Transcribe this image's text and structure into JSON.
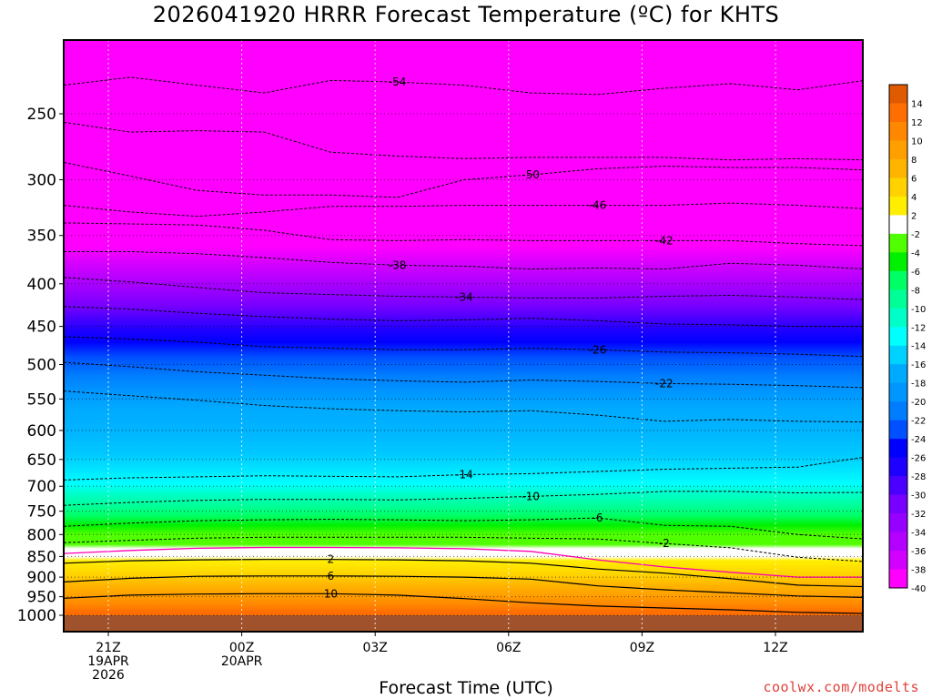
{
  "title": "2026041920 HRRR Forecast Temperature (ºC) for KHTS",
  "credit": "coolwx.com/modelts",
  "chart_data": {
    "type": "heatmap",
    "xlabel": "Forecast Time (UTC)",
    "ylabel": "",
    "x_range_hours": [
      -1,
      17
    ],
    "y_range_hpa": [
      200,
      1030
    ],
    "y_scale": "log-pressure (inverted)",
    "y_ticks": [
      250,
      300,
      350,
      400,
      450,
      500,
      550,
      600,
      650,
      700,
      750,
      800,
      850,
      900,
      950,
      1000
    ],
    "x_ticks": [
      {
        "h": 0,
        "lines": [
          "21Z",
          "19APR",
          "2026"
        ]
      },
      {
        "h": 3,
        "lines": [
          "00Z",
          "20APR"
        ]
      },
      {
        "h": 6,
        "lines": [
          "03Z"
        ]
      },
      {
        "h": 9,
        "lines": [
          "06Z"
        ]
      },
      {
        "h": 12,
        "lines": [
          "09Z"
        ]
      },
      {
        "h": 15,
        "lines": [
          "12Z"
        ]
      }
    ],
    "grid": true,
    "colorbar": {
      "placement": "right",
      "labels": [
        "14",
        "12",
        "10",
        "8",
        "6",
        "4",
        "2",
        "-2",
        "-4",
        "-6",
        "-8",
        "-10",
        "-12",
        "-14",
        "-16",
        "-18",
        "-20",
        "-22",
        "-24",
        "-26",
        "-28",
        "-30",
        "-32",
        "-34",
        "-36",
        "-38",
        "-40"
      ],
      "colors": [
        "#e05a00",
        "#ff6e00",
        "#ff8800",
        "#ffa000",
        "#ffb400",
        "#ffd200",
        "#ffee00",
        "#ffffff",
        "#50ff00",
        "#00f000",
        "#00ff64",
        "#00ff96",
        "#00ffc8",
        "#00ffff",
        "#00d2ff",
        "#00aaff",
        "#0096ff",
        "#007dff",
        "#0050ff",
        "#0000ff",
        "#1e00ff",
        "#4b00ff",
        "#7800ff",
        "#9600ff",
        "#b400ff",
        "#d200ff",
        "#ff00ff"
      ]
    },
    "surface_fill": "#a0522d",
    "series": [
      {
        "label": "-54",
        "y": [
          231,
          226,
          231,
          236,
          228,
          229,
          231,
          236,
          237,
          233,
          230,
          234,
          228
        ]
      },
      {
        "label": "",
        "y": [
          256,
          263,
          262,
          263,
          278,
          281,
          283,
          282,
          282,
          282,
          284,
          283,
          284
        ]
      },
      {
        "label": "-50",
        "y": [
          286,
          297,
          309,
          313,
          313,
          315,
          300,
          296,
          291,
          289,
          290,
          290,
          292
        ]
      },
      {
        "label": "-46",
        "y": [
          322,
          328,
          332,
          328,
          323,
          323,
          322,
          322,
          322,
          322,
          320,
          322,
          325
        ]
      },
      {
        "label": "-42",
        "y": [
          338,
          339,
          340,
          345,
          354,
          355,
          354,
          355,
          355,
          355,
          355,
          358,
          360
        ]
      },
      {
        "label": "-38",
        "y": [
          366,
          366,
          368,
          372,
          377,
          380,
          381,
          384,
          383,
          384,
          378,
          380,
          384
        ]
      },
      {
        "label": "-34",
        "y": [
          393,
          398,
          404,
          410,
          412,
          414,
          415,
          416,
          416,
          414,
          413,
          415,
          418
        ]
      },
      {
        "label": "",
        "y": [
          426,
          429,
          434,
          438,
          441,
          443,
          442,
          440,
          443,
          447,
          448,
          450,
          450
        ]
      },
      {
        "label": "-26",
        "y": [
          463,
          466,
          470,
          476,
          478,
          480,
          480,
          478,
          480,
          483,
          484,
          486,
          489
        ]
      },
      {
        "label": "-22",
        "y": [
          497,
          503,
          510,
          515,
          520,
          523,
          525,
          522,
          524,
          527,
          528,
          530,
          533
        ]
      },
      {
        "label": "",
        "y": [
          538,
          545,
          552,
          560,
          565,
          568,
          570,
          568,
          575,
          585,
          582,
          585,
          586
        ]
      },
      {
        "label": "-14",
        "y": [
          688,
          684,
          682,
          680,
          681,
          682,
          678,
          676,
          672,
          668,
          666,
          664,
          646
        ]
      },
      {
        "label": "-10",
        "y": [
          738,
          732,
          728,
          726,
          726,
          727,
          724,
          720,
          716,
          710,
          710,
          713,
          712
        ]
      },
      {
        "label": "-6",
        "y": [
          782,
          775,
          770,
          768,
          767,
          768,
          770,
          768,
          764,
          780,
          782,
          800,
          810
        ]
      },
      {
        "label": "-2",
        "y": [
          818,
          813,
          808,
          806,
          806,
          806,
          806,
          808,
          810,
          820,
          830,
          852,
          862
        ]
      }
    ],
    "solid_isotherms": [
      {
        "label": "2",
        "y": [
          866,
          860,
          858,
          857,
          857,
          858,
          860,
          866,
          880,
          890,
          904,
          920,
          924
        ]
      },
      {
        "label": "6",
        "y": [
          912,
          903,
          898,
          897,
          897,
          898,
          900,
          905,
          922,
          932,
          940,
          948,
          952
        ]
      },
      {
        "label": "10",
        "y": [
          954,
          946,
          943,
          942,
          942,
          946,
          955,
          966,
          975,
          980,
          985,
          992,
          995
        ]
      }
    ],
    "freezing_line": {
      "label": "0",
      "color": "#ff00b4",
      "y": [
        843,
        836,
        831,
        829,
        829,
        830,
        832,
        838,
        858,
        875,
        888,
        900,
        900
      ]
    },
    "x_nodes_hours": [
      -1,
      0.5,
      2,
      3.5,
      5,
      6.5,
      8,
      9.5,
      11,
      12.5,
      14,
      15.5,
      17
    ]
  }
}
